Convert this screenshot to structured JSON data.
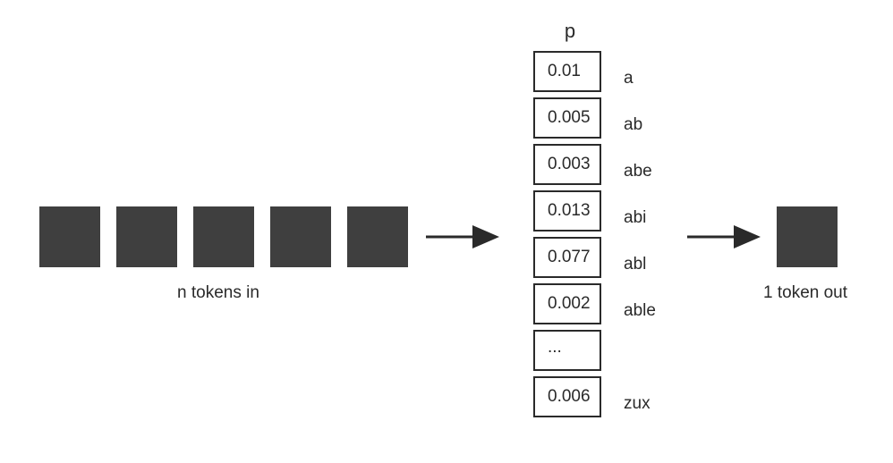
{
  "input": {
    "caption": "n tokens in",
    "token_count": 5
  },
  "output": {
    "caption": "1 token out",
    "token_count": 1
  },
  "distribution": {
    "header": "p",
    "rows": [
      {
        "value": "0.01",
        "label": "a"
      },
      {
        "value": "0.005",
        "label": "ab"
      },
      {
        "value": "0.003",
        "label": "abe"
      },
      {
        "value": "0.013",
        "label": "abi"
      },
      {
        "value": "0.077",
        "label": "abl"
      },
      {
        "value": "0.002",
        "label": "able"
      },
      {
        "value": "...",
        "label": ""
      },
      {
        "value": "0.006",
        "label": "zux"
      }
    ]
  },
  "colors": {
    "token_fill": "#3f3f3f",
    "line": "#2a2a2a",
    "background": "#ffffff"
  }
}
